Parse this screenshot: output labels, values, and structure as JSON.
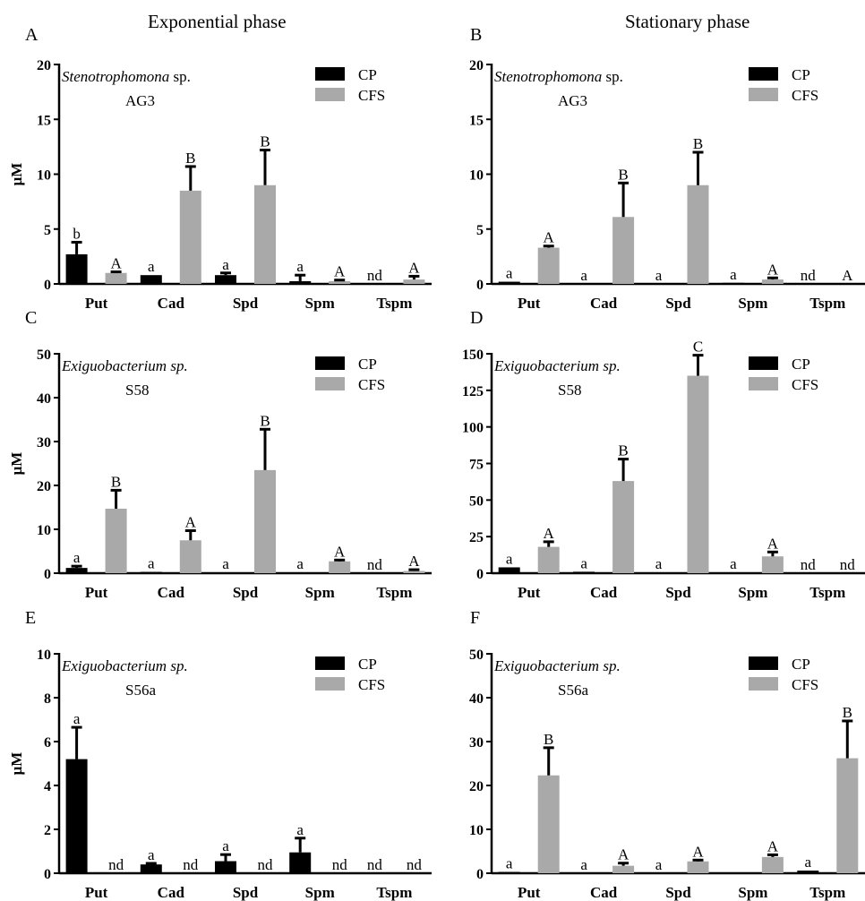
{
  "header": {
    "left_title": "Exponential phase",
    "right_title": "Stationary phase"
  },
  "colors": {
    "CP": "#000000",
    "CFS": "#a9a9a9"
  },
  "chart_data": [
    {
      "id": "A",
      "type": "bar",
      "letter": "A",
      "organism_italic": "Stenotrophomona",
      "organism_suffix": " sp.",
      "strain": "AG3",
      "ylabel": "μM",
      "ylim": [
        0,
        20
      ],
      "yticks": [
        0,
        5,
        10,
        15,
        20
      ],
      "categories": [
        "Put",
        "Cad",
        "Spd",
        "Spm",
        "Tspm"
      ],
      "legend": [
        "CP",
        "CFS"
      ],
      "series": [
        {
          "name": "CP",
          "values": [
            2.7,
            0.8,
            0.8,
            0.25,
            0
          ],
          "errors": [
            1.1,
            0,
            0.2,
            0.55,
            0
          ],
          "sig": [
            "b",
            "a",
            "a",
            "a",
            "nd"
          ]
        },
        {
          "name": "CFS",
          "values": [
            1.0,
            8.5,
            9.0,
            0.25,
            0.4
          ],
          "errors": [
            0.1,
            2.2,
            3.2,
            0.1,
            0.3
          ],
          "sig": [
            "A",
            "B",
            "B",
            "A",
            "A"
          ]
        }
      ]
    },
    {
      "id": "B",
      "type": "bar",
      "letter": "B",
      "organism_italic": "Stenotrophomona",
      "organism_suffix": " sp.",
      "strain": "AG3",
      "ylabel": "",
      "ylim": [
        0,
        20
      ],
      "yticks": [
        0,
        5,
        10,
        15,
        20
      ],
      "categories": [
        "Put",
        "Cad",
        "Spd",
        "Spm",
        "Tspm"
      ],
      "legend": [
        "CP",
        "CFS"
      ],
      "series": [
        {
          "name": "CP",
          "values": [
            0.2,
            0,
            0,
            0.1,
            0
          ],
          "errors": [
            0,
            0,
            0,
            0,
            0
          ],
          "sig": [
            "a",
            "a",
            "a",
            "a",
            "nd"
          ]
        },
        {
          "name": "CFS",
          "values": [
            3.3,
            6.1,
            9.0,
            0.4,
            0
          ],
          "errors": [
            0.15,
            3.1,
            3.0,
            0.15,
            0
          ],
          "sig": [
            "A",
            "B",
            "B",
            "A",
            "A"
          ]
        }
      ]
    },
    {
      "id": "C",
      "type": "bar",
      "letter": "C",
      "organism_italic": "Exiguobacterium sp.",
      "organism_suffix": "",
      "strain": "S58",
      "ylabel": "μM",
      "ylim": [
        0,
        50
      ],
      "yticks": [
        0,
        10,
        20,
        30,
        40,
        50
      ],
      "categories": [
        "Put",
        "Cad",
        "Spd",
        "Spm",
        "Tspm"
      ],
      "legend": [
        "CP",
        "CFS"
      ],
      "series": [
        {
          "name": "CP",
          "values": [
            1.2,
            0.3,
            0.2,
            0.2,
            0
          ],
          "errors": [
            0.4,
            0,
            0,
            0,
            0
          ],
          "sig": [
            "a",
            "a",
            "a",
            "a",
            "nd"
          ]
        },
        {
          "name": "CFS",
          "values": [
            14.7,
            7.5,
            23.5,
            2.7,
            0.5
          ],
          "errors": [
            4.2,
            2.2,
            9.3,
            0.3,
            0.3
          ],
          "sig": [
            "B",
            "A",
            "B",
            "A",
            "A"
          ]
        }
      ]
    },
    {
      "id": "D",
      "type": "bar",
      "letter": "D",
      "organism_italic": "Exiguobacterium sp.",
      "organism_suffix": "",
      "strain": "S58",
      "ylabel": "",
      "ylim": [
        0,
        150
      ],
      "yticks": [
        0,
        25,
        50,
        75,
        100,
        125,
        150
      ],
      "categories": [
        "Put",
        "Cad",
        "Spd",
        "Spm",
        "Tspm"
      ],
      "legend": [
        "CP",
        "CFS"
      ],
      "series": [
        {
          "name": "CP",
          "values": [
            4.0,
            1.0,
            0.5,
            0.5,
            0
          ],
          "errors": [
            0,
            0,
            0,
            0,
            0
          ],
          "sig": [
            "a",
            "a",
            "a",
            "a",
            "nd"
          ]
        },
        {
          "name": "CFS",
          "values": [
            18,
            63,
            135,
            11.5,
            0
          ],
          "errors": [
            3.5,
            15,
            14,
            3,
            0
          ],
          "sig": [
            "A",
            "B",
            "C",
            "A",
            "nd"
          ]
        }
      ]
    },
    {
      "id": "E",
      "type": "bar",
      "letter": "E",
      "organism_italic": "Exiguobacterium sp.",
      "organism_suffix": "",
      "strain": "S56a",
      "ylabel": "μM",
      "ylim": [
        0,
        10
      ],
      "yticks": [
        0,
        2,
        4,
        6,
        8,
        10
      ],
      "categories": [
        "Put",
        "Cad",
        "Spd",
        "Spm",
        "Tspm"
      ],
      "legend": [
        "CP",
        "CFS"
      ],
      "series": [
        {
          "name": "CP",
          "values": [
            5.2,
            0.4,
            0.55,
            0.95,
            0
          ],
          "errors": [
            1.45,
            0.05,
            0.3,
            0.65,
            0
          ],
          "sig": [
            "a",
            "a",
            "a",
            "a",
            "nd"
          ]
        },
        {
          "name": "CFS",
          "values": [
            0,
            0,
            0,
            0,
            0
          ],
          "errors": [
            0,
            0,
            0,
            0,
            0
          ],
          "sig": [
            "nd",
            "nd",
            "nd",
            "nd",
            "nd"
          ]
        }
      ]
    },
    {
      "id": "F",
      "type": "bar",
      "letter": "F",
      "organism_italic": "Exiguobacterium sp.",
      "organism_suffix": "",
      "strain": "S56a",
      "ylabel": "",
      "ylim": [
        0,
        50
      ],
      "yticks": [
        0,
        10,
        20,
        30,
        40,
        50
      ],
      "categories": [
        "Put",
        "Cad",
        "Spd",
        "Spm",
        "Tspm"
      ],
      "legend": [
        "CP",
        "CFS"
      ],
      "series": [
        {
          "name": "CP",
          "values": [
            0.3,
            0,
            0,
            0.2,
            0.6
          ],
          "errors": [
            0,
            0,
            0,
            0,
            0
          ],
          "sig": [
            "a",
            "a",
            "a",
            "",
            "a"
          ]
        },
        {
          "name": "CFS",
          "values": [
            22.3,
            1.7,
            2.7,
            3.7,
            26.2
          ],
          "errors": [
            6.3,
            0.6,
            0.3,
            0.5,
            8.5
          ],
          "sig": [
            "B",
            "A",
            "A",
            "A",
            "B"
          ]
        }
      ]
    }
  ]
}
